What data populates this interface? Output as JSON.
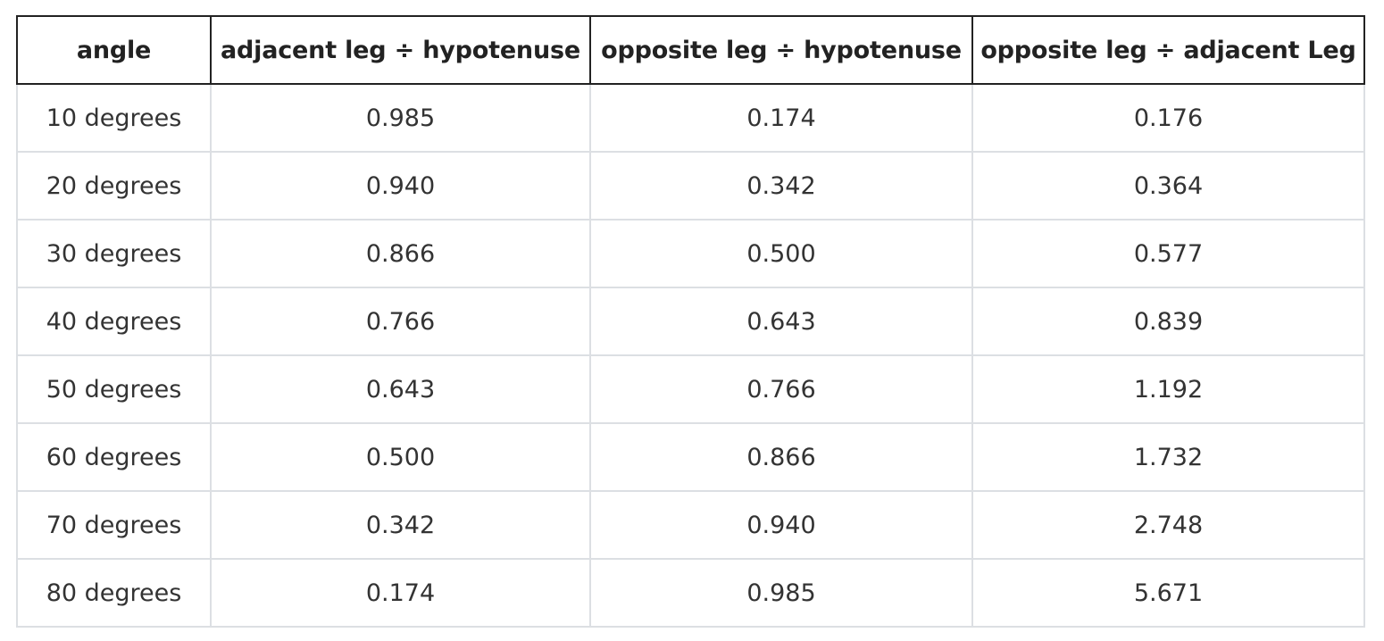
{
  "table": {
    "headers": [
      "angle",
      "adjacent leg ÷ hypotenuse",
      "opposite leg ÷ hypotenuse",
      "opposite leg ÷ adjacent Leg"
    ],
    "rows": [
      [
        "10 degrees",
        "0.985",
        "0.174",
        "0.176"
      ],
      [
        "20 degrees",
        "0.940",
        "0.342",
        "0.364"
      ],
      [
        "30 degrees",
        "0.866",
        "0.500",
        "0.577"
      ],
      [
        "40 degrees",
        "0.766",
        "0.643",
        "0.839"
      ],
      [
        "50 degrees",
        "0.643",
        "0.766",
        "1.192"
      ],
      [
        "60 degrees",
        "0.500",
        "0.866",
        "1.732"
      ],
      [
        "70 degrees",
        "0.342",
        "0.940",
        "2.748"
      ],
      [
        "80 degrees",
        "0.174",
        "0.985",
        "5.671"
      ]
    ]
  },
  "colors": {
    "header_border": "#222222",
    "cell_border": "#dcdfe3",
    "text": "#333333"
  }
}
